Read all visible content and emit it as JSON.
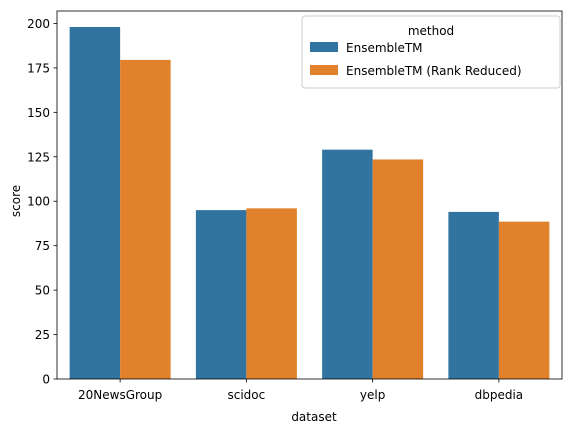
{
  "chart_data": {
    "type": "bar",
    "xlabel": "dataset",
    "ylabel": "score",
    "categories": [
      "20NewsGroup",
      "scidoc",
      "yelp",
      "dbpedia"
    ],
    "series": [
      {
        "name": "EnsembleTM",
        "color": "#3274a1",
        "values": [
          198,
          95,
          129,
          94
        ]
      },
      {
        "name": "EnsembleTM (Rank Reduced)",
        "color": "#e1812c",
        "values": [
          179.5,
          96,
          123.5,
          88.5
        ]
      }
    ],
    "ylim": [
      0,
      207
    ],
    "yticks": [
      0,
      25,
      50,
      75,
      100,
      125,
      150,
      175,
      200
    ],
    "legend": {
      "title": "method",
      "placement": "top-right"
    },
    "grid": false
  }
}
